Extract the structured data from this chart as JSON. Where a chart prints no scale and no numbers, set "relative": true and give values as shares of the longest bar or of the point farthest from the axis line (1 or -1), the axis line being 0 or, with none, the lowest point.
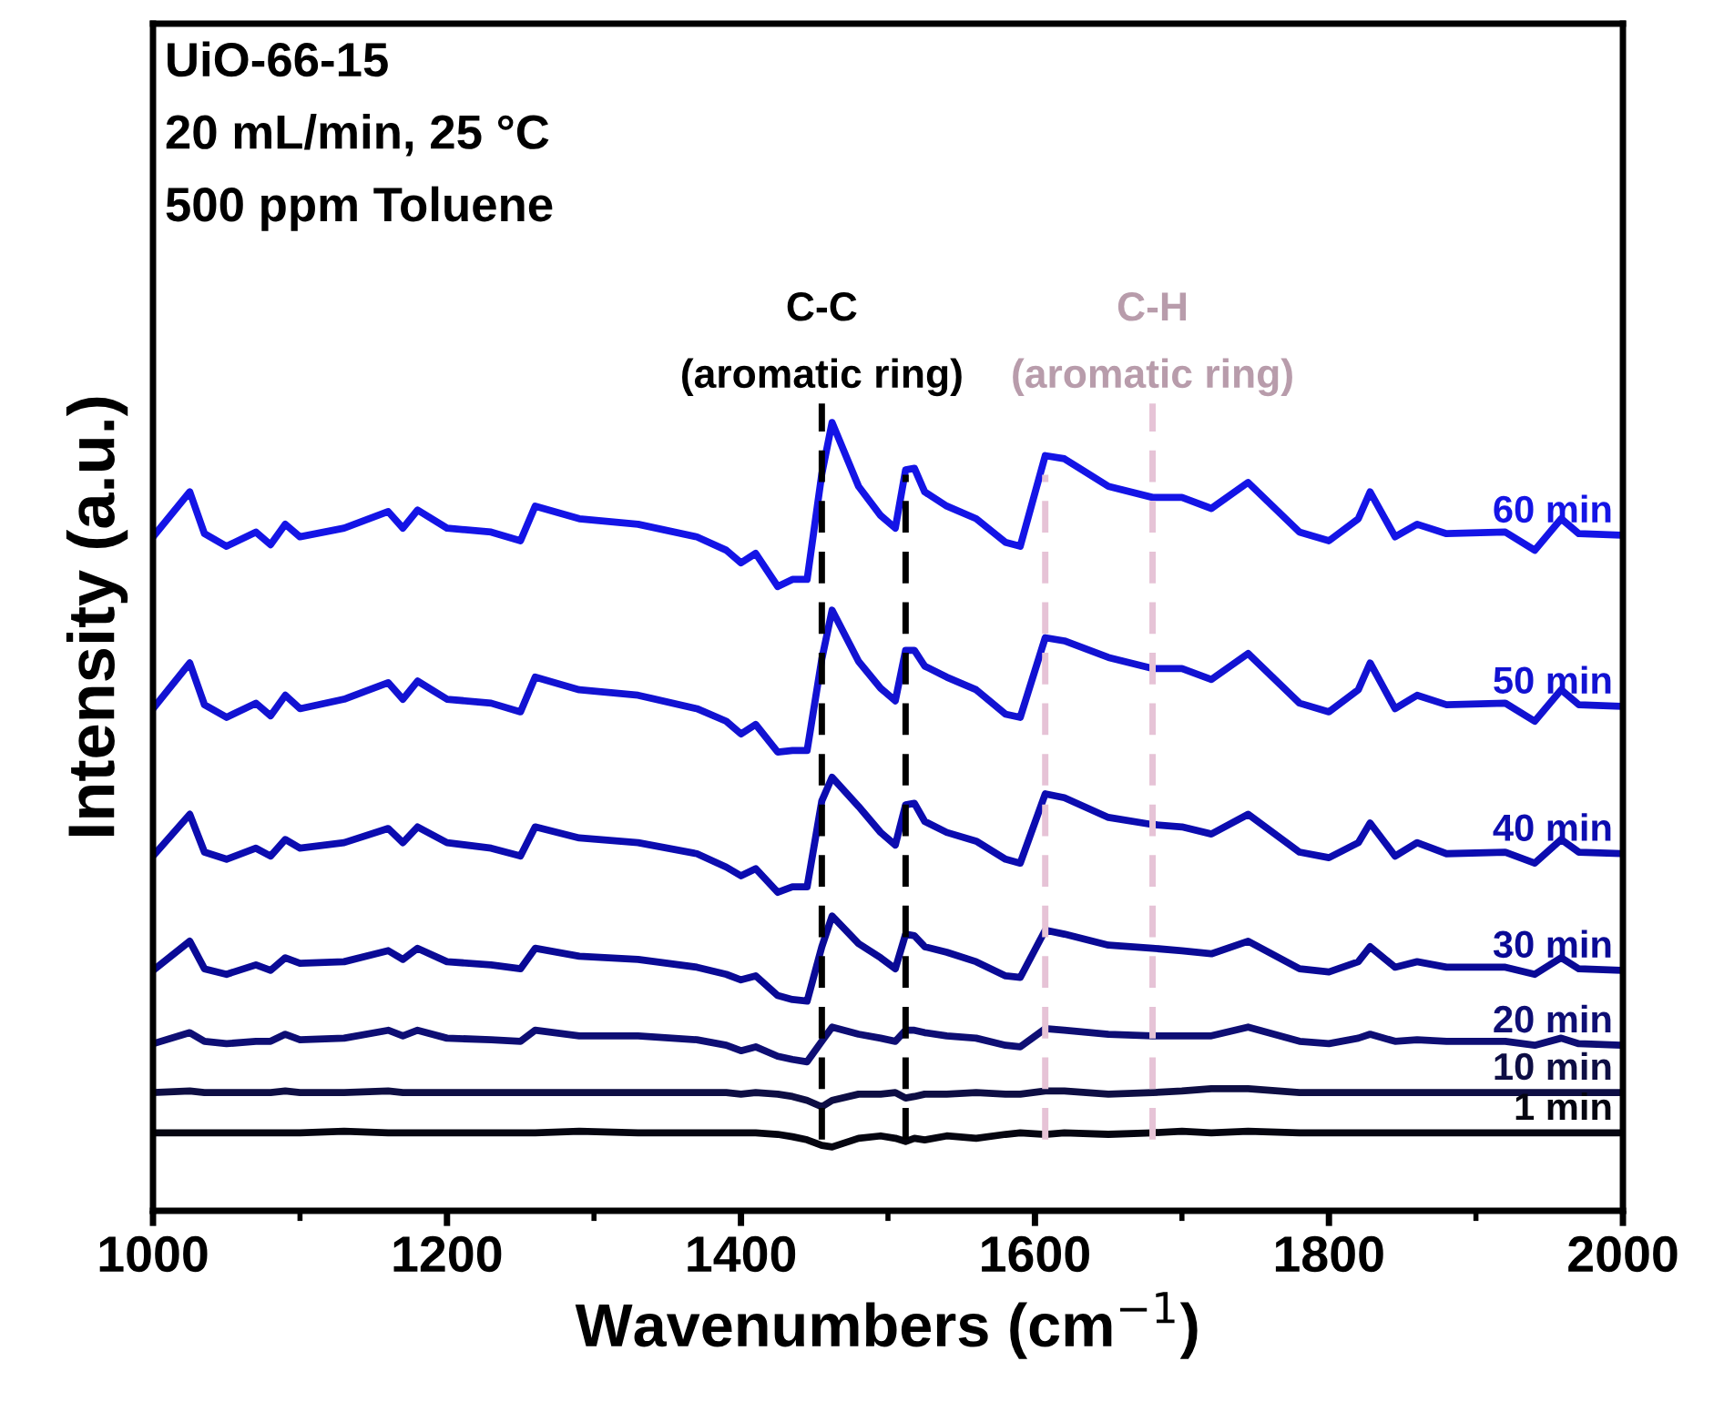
{
  "chart_data": {
    "type": "line",
    "relative": true,
    "xlabel": "Wavenumbers (cm$^{−1}$)",
    "ylabel": "Intensity (a.u.)",
    "x": [
      1000,
      1025,
      1035,
      1050,
      1070,
      1080,
      1090,
      1100,
      1130,
      1160,
      1170,
      1180,
      1200,
      1230,
      1250,
      1260,
      1290,
      1330,
      1370,
      1390,
      1400,
      1410,
      1425,
      1435,
      1445,
      1455,
      1462,
      1480,
      1495,
      1505,
      1512,
      1518,
      1525,
      1540,
      1560,
      1580,
      1590,
      1607,
      1620,
      1650,
      1680,
      1700,
      1720,
      1745,
      1780,
      1800,
      1820,
      1828,
      1845,
      1860,
      1880,
      1920,
      1940,
      1958,
      1970,
      2000
    ],
    "xlim": [
      1000,
      2000
    ],
    "xticks": [
      1000,
      1200,
      1400,
      1600,
      1800,
      2000
    ],
    "tick_labels": "x",
    "grid": false,
    "legend": false,
    "marker": "none",
    "line_style": "solid",
    "series": [
      {
        "name": "60 min",
        "color": "#1414e6",
        "values": [
          0.855,
          0.912,
          0.859,
          0.843,
          0.861,
          0.845,
          0.871,
          0.855,
          0.866,
          0.887,
          0.866,
          0.889,
          0.866,
          0.861,
          0.85,
          0.894,
          0.878,
          0.871,
          0.855,
          0.838,
          0.822,
          0.834,
          0.792,
          0.801,
          0.801,
          0.935,
          1.0,
          0.919,
          0.882,
          0.866,
          0.94,
          0.942,
          0.912,
          0.894,
          0.878,
          0.848,
          0.843,
          0.958,
          0.954,
          0.919,
          0.905,
          0.905,
          0.891,
          0.924,
          0.861,
          0.85,
          0.878,
          0.912,
          0.855,
          0.871,
          0.859,
          0.861,
          0.838,
          0.878,
          0.859,
          0.857
        ]
      },
      {
        "name": "50 min",
        "color": "#1212d2",
        "values": [
          0.637,
          0.695,
          0.642,
          0.626,
          0.644,
          0.628,
          0.654,
          0.637,
          0.649,
          0.67,
          0.649,
          0.672,
          0.649,
          0.644,
          0.633,
          0.677,
          0.661,
          0.654,
          0.637,
          0.621,
          0.605,
          0.617,
          0.582,
          0.584,
          0.584,
          0.7,
          0.762,
          0.697,
          0.663,
          0.647,
          0.711,
          0.711,
          0.691,
          0.677,
          0.661,
          0.63,
          0.626,
          0.727,
          0.723,
          0.702,
          0.688,
          0.688,
          0.674,
          0.707,
          0.644,
          0.633,
          0.661,
          0.695,
          0.637,
          0.654,
          0.642,
          0.644,
          0.621,
          0.661,
          0.642,
          0.64
        ]
      },
      {
        "name": "40 min",
        "color": "#0c0cb0",
        "values": [
          0.45,
          0.503,
          0.455,
          0.446,
          0.46,
          0.45,
          0.471,
          0.46,
          0.467,
          0.485,
          0.467,
          0.487,
          0.467,
          0.46,
          0.45,
          0.487,
          0.473,
          0.467,
          0.453,
          0.436,
          0.425,
          0.434,
          0.404,
          0.411,
          0.411,
          0.52,
          0.55,
          0.513,
          0.48,
          0.464,
          0.515,
          0.517,
          0.494,
          0.48,
          0.469,
          0.446,
          0.441,
          0.529,
          0.524,
          0.499,
          0.49,
          0.487,
          0.478,
          0.503,
          0.455,
          0.448,
          0.467,
          0.492,
          0.45,
          0.467,
          0.453,
          0.455,
          0.441,
          0.471,
          0.455,
          0.453
        ]
      },
      {
        "name": "30 min",
        "color": "#0a0a96",
        "values": [
          0.305,
          0.342,
          0.307,
          0.3,
          0.312,
          0.305,
          0.321,
          0.314,
          0.316,
          0.33,
          0.319,
          0.333,
          0.316,
          0.312,
          0.307,
          0.333,
          0.323,
          0.319,
          0.309,
          0.3,
          0.293,
          0.298,
          0.273,
          0.268,
          0.266,
          0.335,
          0.374,
          0.339,
          0.321,
          0.307,
          0.351,
          0.349,
          0.335,
          0.328,
          0.316,
          0.298,
          0.296,
          0.356,
          0.351,
          0.337,
          0.333,
          0.33,
          0.326,
          0.342,
          0.307,
          0.303,
          0.316,
          0.335,
          0.309,
          0.316,
          0.309,
          0.309,
          0.3,
          0.321,
          0.307,
          0.305
        ]
      },
      {
        "name": "20 min",
        "color": "#0e0e74",
        "values": [
          0.212,
          0.226,
          0.215,
          0.212,
          0.215,
          0.215,
          0.224,
          0.217,
          0.219,
          0.229,
          0.222,
          0.229,
          0.219,
          0.217,
          0.215,
          0.229,
          0.222,
          0.222,
          0.217,
          0.21,
          0.203,
          0.208,
          0.196,
          0.192,
          0.189,
          0.215,
          0.233,
          0.224,
          0.219,
          0.215,
          0.229,
          0.229,
          0.226,
          0.222,
          0.219,
          0.21,
          0.208,
          0.231,
          0.229,
          0.224,
          0.222,
          0.222,
          0.222,
          0.233,
          0.215,
          0.212,
          0.219,
          0.224,
          0.215,
          0.217,
          0.215,
          0.215,
          0.21,
          0.219,
          0.212,
          0.21
        ]
      },
      {
        "name": "10 min",
        "color": "#0e0e44",
        "values": [
          0.15,
          0.152,
          0.15,
          0.15,
          0.15,
          0.15,
          0.152,
          0.15,
          0.15,
          0.152,
          0.15,
          0.15,
          0.15,
          0.15,
          0.15,
          0.15,
          0.15,
          0.15,
          0.15,
          0.15,
          0.148,
          0.15,
          0.148,
          0.145,
          0.14,
          0.132,
          0.14,
          0.148,
          0.148,
          0.15,
          0.143,
          0.145,
          0.148,
          0.148,
          0.15,
          0.148,
          0.148,
          0.152,
          0.152,
          0.148,
          0.15,
          0.152,
          0.155,
          0.155,
          0.15,
          0.15,
          0.15,
          0.15,
          0.15,
          0.15,
          0.15,
          0.15,
          0.15,
          0.15,
          0.15,
          0.15
        ]
      },
      {
        "name": "1 min",
        "color": "#050510",
        "values": [
          0.099,
          0.099,
          0.099,
          0.099,
          0.099,
          0.099,
          0.099,
          0.099,
          0.101,
          0.099,
          0.099,
          0.099,
          0.099,
          0.099,
          0.099,
          0.099,
          0.101,
          0.099,
          0.099,
          0.099,
          0.099,
          0.099,
          0.097,
          0.094,
          0.09,
          0.083,
          0.081,
          0.092,
          0.095,
          0.092,
          0.088,
          0.092,
          0.09,
          0.095,
          0.092,
          0.097,
          0.099,
          0.097,
          0.099,
          0.097,
          0.099,
          0.101,
          0.099,
          0.101,
          0.099,
          0.099,
          0.099,
          0.099,
          0.099,
          0.099,
          0.099,
          0.099,
          0.099,
          0.099,
          0.099,
          0.099
        ]
      }
    ],
    "ref_lines": [
      {
        "axis": "x",
        "value": 1455,
        "color": "#000000",
        "line_style": "dashed",
        "label": "C-C\n(aromatic ring)"
      },
      {
        "axis": "x",
        "value": 1512,
        "color": "#000000",
        "line_style": "dashed"
      },
      {
        "axis": "x",
        "value": 1607,
        "color": "#e6c3d6",
        "line_style": "dashed"
      },
      {
        "axis": "x",
        "value": 1680,
        "color": "#e6c3d6",
        "line_style": "dashed",
        "label": "C-H\n(aromatic ring)"
      }
    ],
    "annotations": [
      "UiO-66-15",
      "20 mL/min, 25 °C",
      "500 ppm Toluene"
    ]
  }
}
